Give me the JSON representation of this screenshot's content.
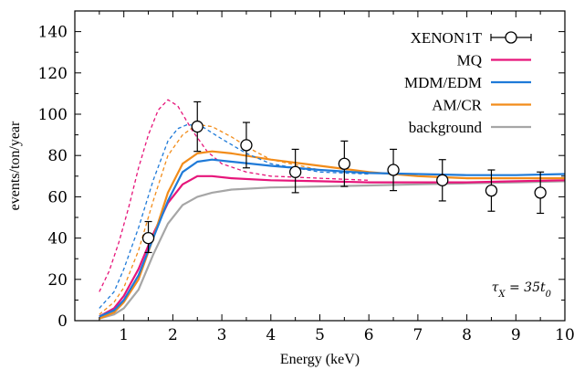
{
  "chart_data": {
    "type": "line",
    "xlabel": "Energy (keV)",
    "ylabel": "events/ton/year",
    "xlim": [
      0,
      10
    ],
    "ylim": [
      0,
      150
    ],
    "xticks": [
      1,
      2,
      3,
      4,
      5,
      6,
      7,
      8,
      9,
      10
    ],
    "yticks": [
      0,
      20,
      40,
      60,
      80,
      100,
      120,
      140
    ],
    "grid": false,
    "legend_position": "top-right",
    "annotation": "τ_X = 35t_0",
    "colors": {
      "MQ": "#e6157a",
      "MDM/EDM": "#1f7ad8",
      "AM/CR": "#f28c1a",
      "background": "#a6a6a6",
      "XENON1T": "#000000"
    },
    "data_points": {
      "name": "XENON1T",
      "x": [
        1.5,
        2.5,
        3.5,
        4.5,
        5.5,
        6.5,
        7.5,
        8.5,
        9.5
      ],
      "y": [
        40,
        94,
        85,
        72,
        76,
        73,
        68,
        63,
        62
      ],
      "err_low": [
        7,
        12,
        11,
        10,
        11,
        10,
        10,
        10,
        10
      ],
      "err_high": [
        8,
        12,
        11,
        11,
        11,
        10,
        10,
        10,
        10
      ]
    },
    "series": [
      {
        "name": "MQ",
        "style": "solid",
        "x": [
          0.5,
          0.8,
          1.0,
          1.3,
          1.6,
          1.9,
          2.2,
          2.5,
          2.8,
          3.2,
          4.0,
          5.0,
          6.0,
          7.0,
          8.0,
          9.0,
          10.0
        ],
        "y": [
          2,
          6,
          12,
          25,
          42,
          57,
          66,
          70,
          70,
          69,
          68,
          67.5,
          67,
          67,
          67,
          67.5,
          68
        ]
      },
      {
        "name": "MQ",
        "style": "dashed",
        "x": [
          0.5,
          0.7,
          0.9,
          1.1,
          1.3,
          1.5,
          1.7,
          1.9,
          2.1,
          2.4,
          2.7,
          3.0,
          3.5,
          4.0,
          5.0,
          6.0
        ],
        "y": [
          14,
          24,
          38,
          55,
          74,
          90,
          102,
          107,
          104,
          92,
          82,
          76,
          72,
          70,
          69,
          68
        ]
      },
      {
        "name": "MDM/EDM",
        "style": "solid",
        "x": [
          0.5,
          0.8,
          1.0,
          1.3,
          1.6,
          1.9,
          2.2,
          2.5,
          2.8,
          3.2,
          4.0,
          5.0,
          6.0,
          7.0,
          8.0,
          9.0,
          10.0
        ],
        "y": [
          2,
          5,
          10,
          22,
          40,
          58,
          72,
          77,
          78,
          77,
          75,
          73,
          71.5,
          71,
          70.5,
          70.5,
          71
        ]
      },
      {
        "name": "MDM/EDM",
        "style": "dashed",
        "x": [
          0.5,
          0.8,
          1.0,
          1.3,
          1.6,
          1.9,
          2.1,
          2.3,
          2.6,
          3.0,
          3.5,
          4.0,
          5.0,
          6.0
        ],
        "y": [
          6,
          14,
          25,
          45,
          68,
          87,
          93,
          95,
          94,
          88,
          81,
          76,
          72,
          71
        ]
      },
      {
        "name": "AM/CR",
        "style": "solid",
        "x": [
          0.5,
          0.8,
          1.0,
          1.3,
          1.6,
          1.9,
          2.2,
          2.5,
          2.8,
          3.2,
          4.0,
          5.0,
          6.0,
          7.0,
          8.0,
          9.0,
          10.0
        ],
        "y": [
          1,
          4,
          9,
          20,
          40,
          62,
          76,
          81,
          82,
          81,
          78,
          75,
          72,
          70,
          69,
          69,
          69
        ]
      },
      {
        "name": "AM/CR",
        "style": "dashed",
        "x": [
          0.5,
          0.8,
          1.0,
          1.3,
          1.6,
          1.9,
          2.2,
          2.5,
          2.8,
          3.2,
          3.6,
          4.0,
          5.0,
          6.0
        ],
        "y": [
          3,
          9,
          16,
          34,
          58,
          80,
          90,
          95,
          94,
          89,
          83,
          78,
          73,
          71
        ]
      },
      {
        "name": "background",
        "style": "solid",
        "x": [
          0.5,
          0.8,
          1.0,
          1.3,
          1.6,
          1.9,
          2.2,
          2.5,
          2.8,
          3.2,
          4.0,
          5.0,
          6.0,
          7.0,
          8.0,
          9.0,
          10.0
        ],
        "y": [
          1,
          3,
          6,
          15,
          32,
          47,
          56,
          60,
          62,
          63.5,
          64.5,
          65,
          65.5,
          66,
          66.5,
          67,
          67.5
        ]
      }
    ]
  }
}
